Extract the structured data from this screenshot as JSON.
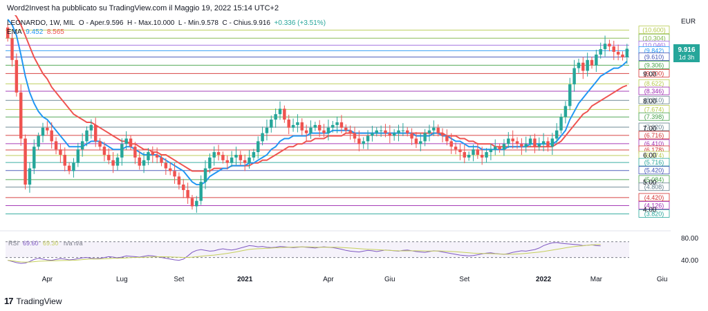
{
  "header": {
    "attribution": "Word2Invest ha pubblicato su TradingView.com il Maggio 19, 2022 15:14 UTC+2"
  },
  "legend": {
    "symbol": "LEONARDO, 1W, MIL",
    "open": "O - Aper.9.596",
    "high": "H - Max.10.000",
    "low": "L - Min.9.578",
    "close": "C - Chius.9.916",
    "change": "+0.336 (+3.51%)",
    "ema_label": "EMA",
    "ema_fast": "9.452",
    "ema_slow": "8.565",
    "ema_fast_color": "#2196f3",
    "ema_slow_color": "#ef5350"
  },
  "rsi": {
    "label": "RSI",
    "value1": "69.60",
    "value2": "69.30",
    "suffix": "n/a  n/a",
    "upper": "80.00",
    "lower": "40.00"
  },
  "price_badge": {
    "value": "9.916",
    "countdown": "1d 3h",
    "color": "#26a69a"
  },
  "footer": {
    "brand": "TradingView",
    "logo_icon": "tv-logo-icon"
  },
  "chart_data": {
    "type": "candlestick",
    "currency_label": "EUR",
    "title": "LEONARDO, 1W, MIL",
    "ylim": [
      3.5,
      11.0
    ],
    "x_tick_labels": [
      "Apr",
      "Lug",
      "Set",
      "2021",
      "Apr",
      "Giu",
      "Set",
      "2022",
      "Mar",
      "Giu"
    ],
    "x_tick_index": [
      9,
      26,
      39,
      54,
      73,
      87,
      104,
      122,
      134,
      149
    ],
    "y_tick_labels": [
      "4.00",
      "5.00",
      "6.00",
      "7.00",
      "8.00",
      "9.00"
    ],
    "levels": [
      {
        "label": "10.600",
        "value": 10.6,
        "color": "#b5c94a"
      },
      {
        "label": "10.304",
        "value": 10.304,
        "color": "#7cb342"
      },
      {
        "label": "10.046",
        "value": 10.046,
        "color": "#9c6ade"
      },
      {
        "label": "9.842",
        "value": 9.842,
        "color": "#2196f3"
      },
      {
        "label": "9.610",
        "value": 9.61,
        "color": "#3f51b5"
      },
      {
        "label": "9.306",
        "value": 9.306,
        "color": "#43a047"
      },
      {
        "label": "9.000",
        "value": 9.0,
        "color": "#d32f2f"
      },
      {
        "label": "8.622",
        "value": 8.622,
        "color": "#b5c94a"
      },
      {
        "label": "8.346",
        "value": 8.346,
        "color": "#9c27b0"
      },
      {
        "label": "8.010",
        "value": 8.01,
        "color": "#607d8b"
      },
      {
        "label": "7.674",
        "value": 7.674,
        "color": "#b5c94a"
      },
      {
        "label": "7.398",
        "value": 7.398,
        "color": "#43a047"
      },
      {
        "label": "7.020",
        "value": 7.02,
        "color": "#607d8b"
      },
      {
        "label": "6.716",
        "value": 6.716,
        "color": "#d32f2f"
      },
      {
        "label": "6.410",
        "value": 6.41,
        "color": "#9c27b0"
      },
      {
        "label": "6.178",
        "value": 6.178,
        "color": "#d32f2f"
      },
      {
        "label": "5.974",
        "value": 5.974,
        "color": "#b5c94a"
      },
      {
        "label": "5.716",
        "value": 5.716,
        "color": "#26a69a"
      },
      {
        "label": "5.420",
        "value": 5.42,
        "color": "#3f51b5"
      },
      {
        "label": "5.084",
        "value": 5.084,
        "color": "#43a047"
      },
      {
        "label": "4.808",
        "value": 4.808,
        "color": "#607d8b"
      },
      {
        "label": "4.420",
        "value": 4.42,
        "color": "#d32f2f"
      },
      {
        "label": "4.126",
        "value": 4.126,
        "color": "#9c27b0"
      },
      {
        "label": "3.820",
        "value": 3.82,
        "color": "#26a69a"
      }
    ],
    "closes": [
      10.3,
      9.5,
      8.3,
      6.6,
      4.9,
      5.5,
      6.3,
      6.7,
      7.0,
      6.9,
      6.5,
      6.2,
      6.0,
      5.6,
      5.4,
      5.7,
      6.2,
      6.5,
      6.9,
      7.1,
      6.5,
      6.3,
      6.0,
      5.8,
      5.6,
      5.9,
      6.4,
      6.6,
      6.3,
      5.9,
      5.6,
      5.8,
      6.1,
      6.0,
      5.9,
      5.7,
      5.5,
      5.4,
      5.2,
      4.9,
      4.7,
      4.4,
      4.1,
      4.3,
      5.0,
      5.5,
      5.9,
      6.1,
      6.0,
      5.8,
      5.7,
      5.9,
      6.0,
      5.8,
      5.7,
      5.9,
      6.1,
      6.5,
      6.8,
      7.0,
      7.3,
      7.5,
      7.7,
      7.3,
      7.0,
      7.1,
      7.2,
      6.9,
      6.8,
      7.0,
      7.1,
      6.9,
      6.8,
      7.0,
      7.1,
      7.2,
      7.0,
      6.9,
      6.8,
      6.6,
      6.4,
      6.5,
      6.7,
      6.8,
      6.9,
      6.9,
      6.8,
      6.7,
      6.8,
      6.9,
      6.9,
      6.8,
      6.6,
      6.4,
      6.5,
      6.8,
      6.9,
      7.0,
      6.8,
      6.7,
      6.5,
      6.3,
      6.2,
      6.1,
      5.9,
      6.0,
      6.2,
      6.0,
      5.9,
      6.1,
      6.2,
      6.3,
      6.2,
      6.4,
      6.6,
      6.5,
      6.4,
      6.3,
      6.4,
      6.6,
      6.3,
      6.4,
      6.5,
      6.3,
      6.6,
      6.9,
      7.4,
      7.8,
      8.6,
      9.2,
      9.4,
      9.1,
      9.5,
      9.3,
      9.7,
      9.9,
      10.1,
      10.0,
      9.8,
      9.7,
      9.6,
      9.916
    ],
    "ema_fast": [
      11.0,
      10.8,
      10.4,
      9.7,
      8.9,
      8.3,
      7.9,
      7.6,
      7.4,
      7.3,
      7.1,
      6.9,
      6.7,
      6.5,
      6.3,
      6.3,
      6.3,
      6.3,
      6.4,
      6.5,
      6.5,
      6.5,
      6.4,
      6.3,
      6.2,
      6.2,
      6.2,
      6.3,
      6.3,
      6.2,
      6.1,
      6.0,
      6.0,
      6.0,
      6.0,
      5.9,
      5.8,
      5.7,
      5.6,
      5.5,
      5.4,
      5.2,
      5.0,
      4.9,
      4.9,
      5.0,
      5.2,
      5.3,
      5.4,
      5.5,
      5.5,
      5.6,
      5.6,
      5.6,
      5.6,
      5.7,
      5.7,
      5.8,
      5.9,
      6.0,
      6.2,
      6.3,
      6.5,
      6.6,
      6.6,
      6.7,
      6.7,
      6.7,
      6.7,
      6.8,
      6.8,
      6.8,
      6.8,
      6.8,
      6.9,
      6.9,
      6.9,
      6.9,
      6.9,
      6.8,
      6.8,
      6.8,
      6.8,
      6.8,
      6.8,
      6.8,
      6.8,
      6.8,
      6.8,
      6.8,
      6.8,
      6.8,
      6.8,
      6.7,
      6.7,
      6.7,
      6.7,
      6.8,
      6.8,
      6.7,
      6.7,
      6.6,
      6.5,
      6.5,
      6.4,
      6.3,
      6.3,
      6.3,
      6.2,
      6.2,
      6.2,
      6.2,
      6.2,
      6.2,
      6.3,
      6.3,
      6.3,
      6.3,
      6.3,
      6.4,
      6.4,
      6.4,
      6.4,
      6.4,
      6.4,
      6.5,
      6.7,
      6.9,
      7.3,
      7.6,
      7.9,
      8.1,
      8.3,
      8.5,
      8.7,
      8.9,
      9.0,
      9.1,
      9.2,
      9.2,
      9.3,
      9.452
    ],
    "ema_slow": [
      11.5,
      11.3,
      11.1,
      10.8,
      10.4,
      10.0,
      9.6,
      9.3,
      9.0,
      8.8,
      8.5,
      8.3,
      8.1,
      7.9,
      7.7,
      7.5,
      7.4,
      7.3,
      7.2,
      7.2,
      7.1,
      7.0,
      6.9,
      6.8,
      6.7,
      6.6,
      6.5,
      6.5,
      6.4,
      6.4,
      6.3,
      6.2,
      6.2,
      6.1,
      6.1,
      6.0,
      6.0,
      5.9,
      5.8,
      5.7,
      5.6,
      5.5,
      5.4,
      5.4,
      5.4,
      5.4,
      5.4,
      5.5,
      5.5,
      5.5,
      5.5,
      5.6,
      5.6,
      5.6,
      5.6,
      5.6,
      5.7,
      5.7,
      5.8,
      5.8,
      5.9,
      6.0,
      6.1,
      6.2,
      6.3,
      6.3,
      6.4,
      6.4,
      6.5,
      6.5,
      6.6,
      6.6,
      6.6,
      6.7,
      6.7,
      6.7,
      6.7,
      6.8,
      6.8,
      6.8,
      6.8,
      6.8,
      6.8,
      6.8,
      6.8,
      6.8,
      6.8,
      6.8,
      6.8,
      6.8,
      6.8,
      6.8,
      6.8,
      6.8,
      6.8,
      6.8,
      6.8,
      6.8,
      6.8,
      6.8,
      6.7,
      6.7,
      6.7,
      6.6,
      6.6,
      6.5,
      6.5,
      6.4,
      6.4,
      6.4,
      6.4,
      6.3,
      6.3,
      6.3,
      6.3,
      6.3,
      6.3,
      6.3,
      6.3,
      6.3,
      6.3,
      6.3,
      6.3,
      6.3,
      6.3,
      6.4,
      6.5,
      6.7,
      6.9,
      7.1,
      7.3,
      7.5,
      7.6,
      7.8,
      7.9,
      8.0,
      8.1,
      8.2,
      8.3,
      8.4,
      8.5,
      8.565
    ],
    "rsi_values": [
      33,
      30,
      27,
      25,
      26,
      30,
      35,
      38,
      36,
      34,
      33,
      35,
      37,
      36,
      34,
      35,
      37,
      39,
      40,
      38,
      37,
      38,
      40,
      42,
      41,
      39,
      41,
      44,
      43,
      42,
      41,
      43,
      45,
      44,
      42,
      40,
      38,
      36,
      34,
      33,
      36,
      44,
      53,
      58,
      60,
      58,
      56,
      57,
      60,
      62,
      60,
      59,
      61,
      64,
      67,
      70,
      69,
      67,
      68,
      66,
      65,
      66,
      68,
      67,
      66,
      65,
      66,
      67,
      66,
      65,
      64,
      66,
      67,
      66,
      65,
      63,
      61,
      58,
      56,
      55,
      54,
      56,
      58,
      57,
      55,
      57,
      59,
      58,
      57,
      56,
      58,
      59,
      57,
      55,
      54,
      53,
      55,
      57,
      56,
      54,
      52,
      50,
      48,
      46,
      45,
      44,
      45,
      47,
      49,
      51,
      52,
      50,
      49,
      48,
      50,
      53,
      55,
      57,
      56,
      58,
      60,
      64,
      70,
      74,
      77,
      78,
      76,
      75,
      74,
      73,
      72,
      70,
      71,
      72,
      70,
      69.6
    ]
  }
}
